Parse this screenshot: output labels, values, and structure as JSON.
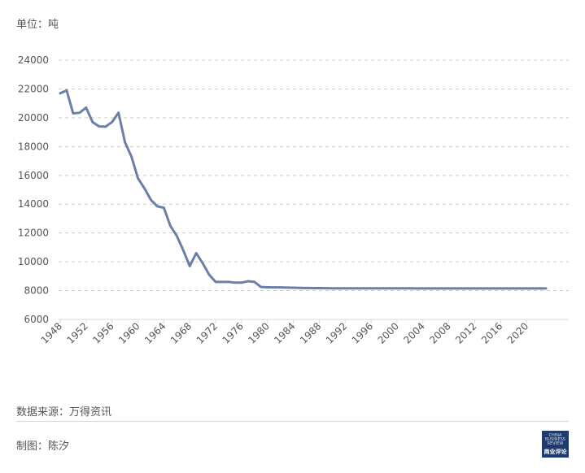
{
  "header": {
    "unit_label": "单位：吨"
  },
  "footer": {
    "source": "数据来源：万得资讯",
    "author": "制图：陈汐",
    "logo_caption": "CHINA BUSINESS REVIEW",
    "logo_text": "商业评论"
  },
  "colors": {
    "line": "#6b7fa8",
    "grid": "#cccccc",
    "axis": "#d9d9d9",
    "text": "#555555"
  },
  "chart_data": {
    "type": "line",
    "title": "",
    "xlabel": "",
    "ylabel": "单位：吨",
    "ylim": [
      6000,
      24000
    ],
    "yticks": [
      6000,
      8000,
      10000,
      12000,
      14000,
      16000,
      18000,
      20000,
      22000,
      24000
    ],
    "xlim": [
      1948,
      2024
    ],
    "xticks": [
      1948,
      1952,
      1956,
      1960,
      1964,
      1968,
      1972,
      1976,
      1980,
      1984,
      1988,
      1992,
      1996,
      2000,
      2004,
      2008,
      2012,
      2016,
      2020
    ],
    "grid": true,
    "series": [
      {
        "name": "",
        "x": [
          1948,
          1949,
          1950,
          1951,
          1952,
          1953,
          1954,
          1955,
          1956,
          1957,
          1958,
          1959,
          1960,
          1961,
          1962,
          1963,
          1964,
          1965,
          1966,
          1967,
          1968,
          1969,
          1970,
          1971,
          1972,
          1973,
          1974,
          1975,
          1976,
          1977,
          1978,
          1979,
          1980,
          1981,
          1982,
          1983,
          1984,
          1985,
          1986,
          1987,
          1988,
          1989,
          1990,
          1991,
          1992,
          1993,
          1994,
          1995,
          1996,
          1997,
          1998,
          1999,
          2000,
          2001,
          2002,
          2003,
          2004,
          2005,
          2006,
          2007,
          2008,
          2009,
          2010,
          2011,
          2012,
          2013,
          2014,
          2015,
          2016,
          2017,
          2018,
          2019,
          2020,
          2021,
          2022,
          2023
        ],
        "values": [
          21700,
          21900,
          20300,
          20350,
          20700,
          19700,
          19400,
          19380,
          19700,
          20350,
          18300,
          17300,
          15800,
          15100,
          14300,
          13850,
          13750,
          12500,
          11800,
          10800,
          9700,
          10600,
          9900,
          9100,
          8600,
          8600,
          8600,
          8550,
          8550,
          8650,
          8600,
          8250,
          8230,
          8220,
          8220,
          8210,
          8200,
          8190,
          8180,
          8175,
          8170,
          8165,
          8160,
          8160,
          8160,
          8160,
          8160,
          8160,
          8160,
          8160,
          8160,
          8160,
          8160,
          8160,
          8160,
          8150,
          8150,
          8150,
          8150,
          8150,
          8150,
          8150,
          8150,
          8150,
          8150,
          8150,
          8150,
          8150,
          8150,
          8150,
          8150,
          8150,
          8150,
          8150,
          8150,
          8150
        ]
      }
    ]
  }
}
